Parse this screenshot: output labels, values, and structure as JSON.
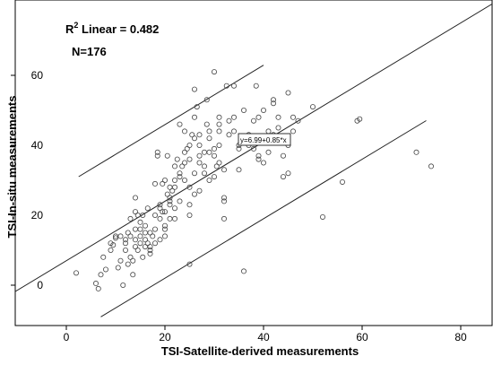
{
  "chart_data": {
    "type": "scatter",
    "xlabel": "TSI-Satellite-derived measurements",
    "ylabel": "TSI-In-situ measurements",
    "xlim": [
      -5,
      85
    ],
    "ylim": [
      -7,
      78
    ],
    "xticks": [
      0,
      20,
      40,
      60,
      80
    ],
    "yticks": [
      0,
      20,
      40,
      60
    ],
    "grid": false,
    "annotations": {
      "r2_prefix": "R",
      "r2_sup": "2",
      "r2_rest": " Linear = 0.482",
      "n_label": "N=176",
      "equation": "y=6.99+0.85*x"
    },
    "fit_line": {
      "intercept": 6.99,
      "slope": 0.85
    },
    "upper_bound": {
      "intercept": 28.9,
      "slope": 0.85
    },
    "lower_bound": {
      "intercept": -15.0,
      "slope": 0.85
    },
    "points": [
      [
        2,
        3.5
      ],
      [
        6,
        0.5
      ],
      [
        6.5,
        -1
      ],
      [
        7,
        3
      ],
      [
        7.5,
        8
      ],
      [
        8,
        4.5
      ],
      [
        9,
        10
      ],
      [
        9,
        12
      ],
      [
        9.5,
        11.5
      ],
      [
        10,
        13.5
      ],
      [
        10,
        14
      ],
      [
        10.5,
        5
      ],
      [
        11,
        14
      ],
      [
        11,
        7
      ],
      [
        11.5,
        0
      ],
      [
        12,
        10
      ],
      [
        12,
        12
      ],
      [
        12,
        13
      ],
      [
        12.5,
        15
      ],
      [
        12.5,
        6
      ],
      [
        13,
        19
      ],
      [
        13,
        14
      ],
      [
        13,
        8
      ],
      [
        13.5,
        3
      ],
      [
        13.5,
        7
      ],
      [
        14,
        21
      ],
      [
        14,
        25
      ],
      [
        14,
        16
      ],
      [
        14,
        13
      ],
      [
        14,
        11
      ],
      [
        14.5,
        20
      ],
      [
        14.5,
        10
      ],
      [
        15,
        18
      ],
      [
        15,
        12
      ],
      [
        15,
        14
      ],
      [
        15,
        16
      ],
      [
        15.5,
        20
      ],
      [
        15.5,
        8
      ],
      [
        16,
        15
      ],
      [
        16,
        17
      ],
      [
        16,
        11
      ],
      [
        16,
        13
      ],
      [
        16.5,
        22
      ],
      [
        16.5,
        12
      ],
      [
        17,
        9
      ],
      [
        17,
        11
      ],
      [
        17,
        15
      ],
      [
        17,
        10
      ],
      [
        17.5,
        14
      ],
      [
        18,
        29
      ],
      [
        18,
        20
      ],
      [
        18,
        16
      ],
      [
        18,
        12
      ],
      [
        18.5,
        38
      ],
      [
        18.5,
        37
      ],
      [
        19,
        23
      ],
      [
        19,
        22
      ],
      [
        19,
        19
      ],
      [
        19,
        13
      ],
      [
        19.5,
        29
      ],
      [
        19.5,
        21
      ],
      [
        20,
        30
      ],
      [
        20,
        21
      ],
      [
        20,
        17
      ],
      [
        20,
        16
      ],
      [
        20,
        14
      ],
      [
        20.5,
        26
      ],
      [
        20.5,
        37
      ],
      [
        21,
        24
      ],
      [
        21,
        25
      ],
      [
        21,
        19
      ],
      [
        21,
        23
      ],
      [
        21.5,
        27
      ],
      [
        22,
        34
      ],
      [
        22,
        30
      ],
      [
        22,
        28
      ],
      [
        22,
        22
      ],
      [
        22,
        19
      ],
      [
        22.5,
        36
      ],
      [
        23,
        32
      ],
      [
        23,
        31
      ],
      [
        23,
        24
      ],
      [
        23.5,
        34
      ],
      [
        24,
        35
      ],
      [
        24,
        30
      ],
      [
        24,
        44
      ],
      [
        24,
        38
      ],
      [
        24.5,
        39
      ],
      [
        25,
        40
      ],
      [
        25,
        28
      ],
      [
        25,
        36
      ],
      [
        25,
        23
      ],
      [
        25,
        20
      ],
      [
        25,
        6
      ],
      [
        25.5,
        43
      ],
      [
        26,
        56
      ],
      [
        26,
        48
      ],
      [
        26,
        42
      ],
      [
        26,
        32
      ],
      [
        26,
        26
      ],
      [
        26.5,
        51
      ],
      [
        27,
        40
      ],
      [
        27,
        43
      ],
      [
        27,
        37
      ],
      [
        27,
        35
      ],
      [
        27,
        27
      ],
      [
        28,
        38
      ],
      [
        28,
        34
      ],
      [
        28,
        32
      ],
      [
        28.5,
        53
      ],
      [
        29,
        44
      ],
      [
        29,
        42
      ],
      [
        29,
        38
      ],
      [
        29,
        30
      ],
      [
        30,
        61
      ],
      [
        30,
        39
      ],
      [
        30,
        37
      ],
      [
        30,
        31
      ],
      [
        30.5,
        34
      ],
      [
        31,
        48
      ],
      [
        31,
        46
      ],
      [
        31,
        44
      ],
      [
        31,
        40
      ],
      [
        31,
        35
      ],
      [
        32,
        33
      ],
      [
        32,
        19
      ],
      [
        32,
        25
      ],
      [
        32,
        24
      ],
      [
        32.5,
        57
      ],
      [
        33,
        47
      ],
      [
        33,
        43
      ],
      [
        34,
        57
      ],
      [
        34,
        48
      ],
      [
        34,
        44
      ],
      [
        35,
        40
      ],
      [
        35,
        39
      ],
      [
        35,
        33
      ],
      [
        36,
        50
      ],
      [
        36,
        4
      ],
      [
        37,
        40
      ],
      [
        37,
        43
      ],
      [
        38,
        47
      ],
      [
        38,
        42
      ],
      [
        38,
        39
      ],
      [
        38.5,
        57
      ],
      [
        39,
        48
      ],
      [
        39,
        37
      ],
      [
        39,
        36
      ],
      [
        40,
        35
      ],
      [
        40,
        50
      ],
      [
        41,
        44
      ],
      [
        41,
        42
      ],
      [
        41,
        38
      ],
      [
        42,
        53
      ],
      [
        42,
        43
      ],
      [
        42,
        52
      ],
      [
        43,
        48
      ],
      [
        43,
        45
      ],
      [
        44,
        37
      ],
      [
        44,
        31
      ],
      [
        45,
        32
      ],
      [
        45,
        55
      ],
      [
        45,
        40
      ],
      [
        46,
        44
      ],
      [
        46,
        48
      ],
      [
        47,
        47
      ],
      [
        50,
        51
      ],
      [
        52,
        19.5
      ],
      [
        56,
        29.5
      ],
      [
        59,
        47
      ],
      [
        59.5,
        47.5
      ],
      [
        71,
        38
      ],
      [
        74,
        34
      ],
      [
        23,
        46
      ],
      [
        21,
        28
      ],
      [
        28.5,
        46
      ]
    ]
  }
}
